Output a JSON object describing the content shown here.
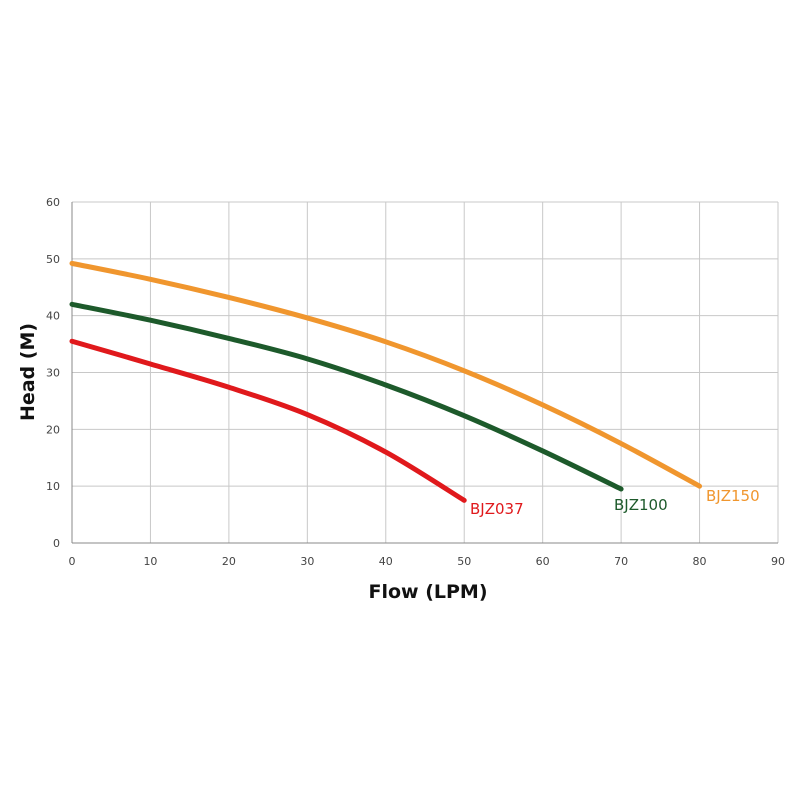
{
  "chart_data": {
    "type": "line",
    "title": "",
    "xlabel": "Flow (LPM)",
    "ylabel": "Head (M)",
    "xlim": [
      0,
      90
    ],
    "ylim": [
      0,
      60
    ],
    "xticks": [
      0,
      10,
      20,
      30,
      40,
      50,
      60,
      70,
      80,
      90
    ],
    "yticks": [
      0,
      10,
      20,
      30,
      40,
      50,
      60
    ],
    "grid": true,
    "legend": "inline labels at curve ends",
    "series": [
      {
        "name": "BJZ150",
        "color": "#f0962e",
        "x": [
          0,
          10,
          20,
          30,
          40,
          50,
          60,
          70,
          80
        ],
        "y": [
          49.2,
          46.4,
          43.2,
          39.6,
          35.4,
          30.3,
          24.3,
          17.5,
          10
        ]
      },
      {
        "name": "BJZ100",
        "color": "#1d5a2b",
        "x": [
          0,
          10,
          20,
          30,
          40,
          50,
          60,
          70
        ],
        "y": [
          42,
          39.2,
          36,
          32.4,
          27.8,
          22.4,
          16.2,
          9.5
        ]
      },
      {
        "name": "BJZ037",
        "color": "#e0191c",
        "x": [
          0,
          10,
          20,
          30,
          40,
          50
        ],
        "y": [
          35.5,
          31.5,
          27.4,
          22.6,
          16,
          7.5
        ]
      }
    ]
  }
}
